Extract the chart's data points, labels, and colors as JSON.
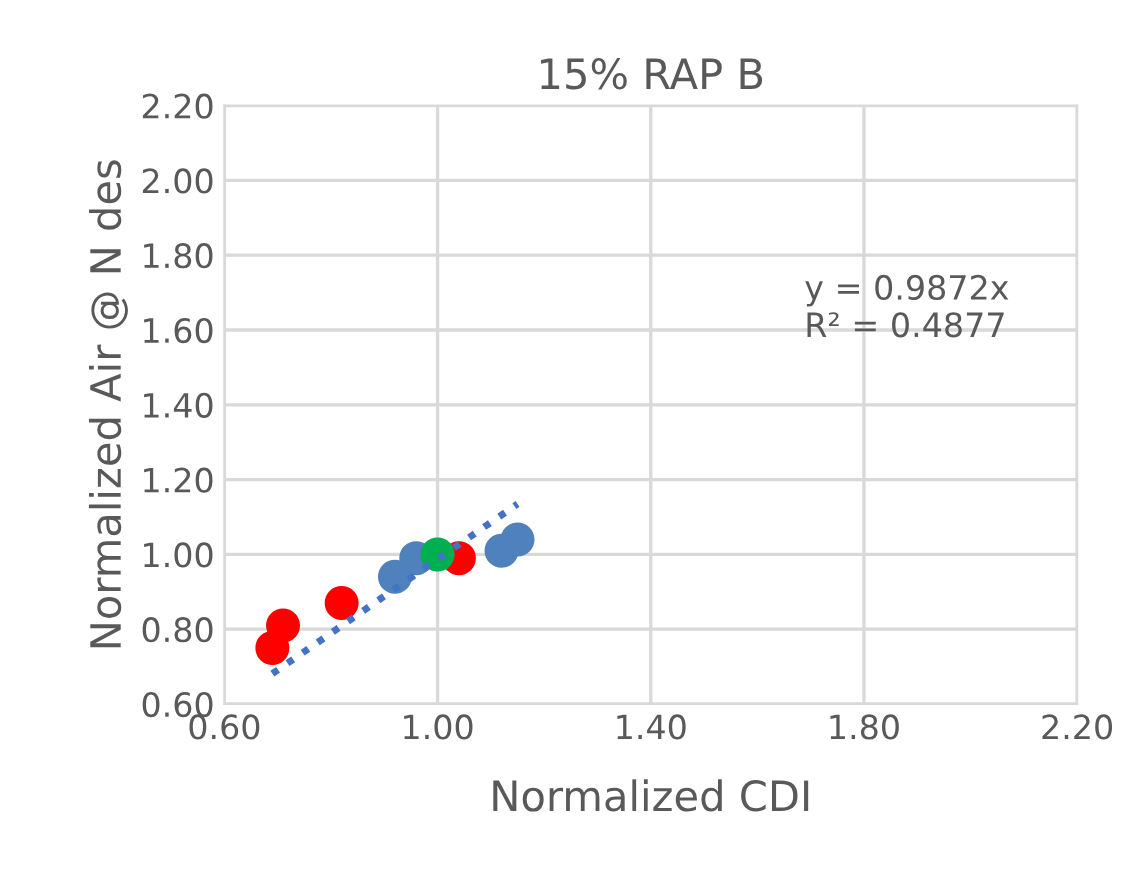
{
  "chart_data": {
    "type": "scatter",
    "title": "15% RAP B",
    "xlabel": "Normalized CDI",
    "ylabel": "Normalized Air @ N des",
    "xlim": [
      0.6,
      2.2
    ],
    "xticks": [
      {
        "value": 0.6,
        "label": "0.60"
      },
      {
        "value": 1.0,
        "label": "1.00"
      },
      {
        "value": 1.4,
        "label": "1.40"
      },
      {
        "value": 1.8,
        "label": "1.80"
      },
      {
        "value": 2.2,
        "label": "2.20"
      }
    ],
    "ylim": [
      0.6,
      2.2
    ],
    "yticks": [
      {
        "value": 0.6,
        "label": "0.60"
      },
      {
        "value": 0.8,
        "label": "0.80"
      },
      {
        "value": 1.0,
        "label": "1.00"
      },
      {
        "value": 1.2,
        "label": "1.20"
      },
      {
        "value": 1.4,
        "label": "1.40"
      },
      {
        "value": 1.6,
        "label": "1.60"
      },
      {
        "value": 1.8,
        "label": "1.80"
      },
      {
        "value": 2.0,
        "label": "2.00"
      },
      {
        "value": 2.2,
        "label": "2.20"
      }
    ],
    "grid": true,
    "marker": "circle",
    "series": [
      {
        "color": "#ff0000",
        "x": [
          0.69,
          0.71,
          0.82,
          1.04
        ],
        "values": [
          0.75,
          0.81,
          0.87,
          0.99
        ]
      },
      {
        "color": "#4f81bd",
        "x": [
          0.92,
          0.96,
          1.12,
          1.15
        ],
        "values": [
          0.94,
          0.99,
          1.01,
          1.04
        ]
      },
      {
        "color": "#00b050",
        "x": [
          1.0
        ],
        "values": [
          1.0
        ]
      },
      {
        "type": "line",
        "line_style": "dotted",
        "marker": "none",
        "color": "#4472c4",
        "x": [
          0.69,
          1.15
        ],
        "values": [
          0.681,
          1.135
        ]
      }
    ],
    "annotations": [
      "y = 0.9872x",
      "R² = 0.4877"
    ]
  }
}
